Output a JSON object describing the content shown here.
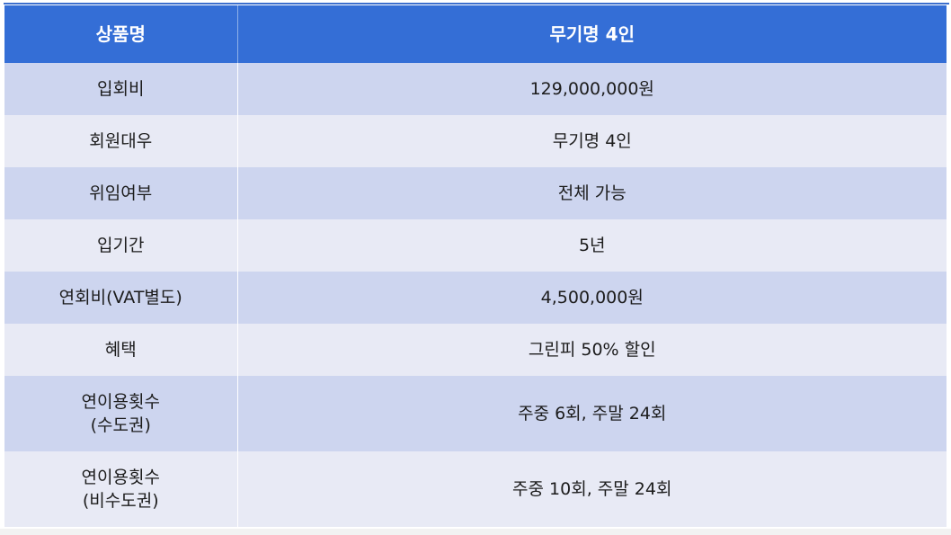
{
  "table": {
    "header": {
      "label": "상품명",
      "value": "무기명 4인"
    },
    "rows": [
      {
        "label": "입회비",
        "value": "129,000,000원"
      },
      {
        "label": "회원대우",
        "value": "무기명 4인"
      },
      {
        "label": "위임여부",
        "value": "전체 가능"
      },
      {
        "label": "입기간",
        "value": "5년"
      },
      {
        "label": "연회비(VAT별도)",
        "value": "4,500,000원"
      },
      {
        "label": "혜택",
        "value": "그린피 50% 할인"
      },
      {
        "label": "연이용횟수\n(수도권)",
        "value": "주중 6회, 주말 24회"
      },
      {
        "label": "연이용횟수\n(비수도권)",
        "value": "주중 10회, 주말 24회"
      }
    ]
  }
}
